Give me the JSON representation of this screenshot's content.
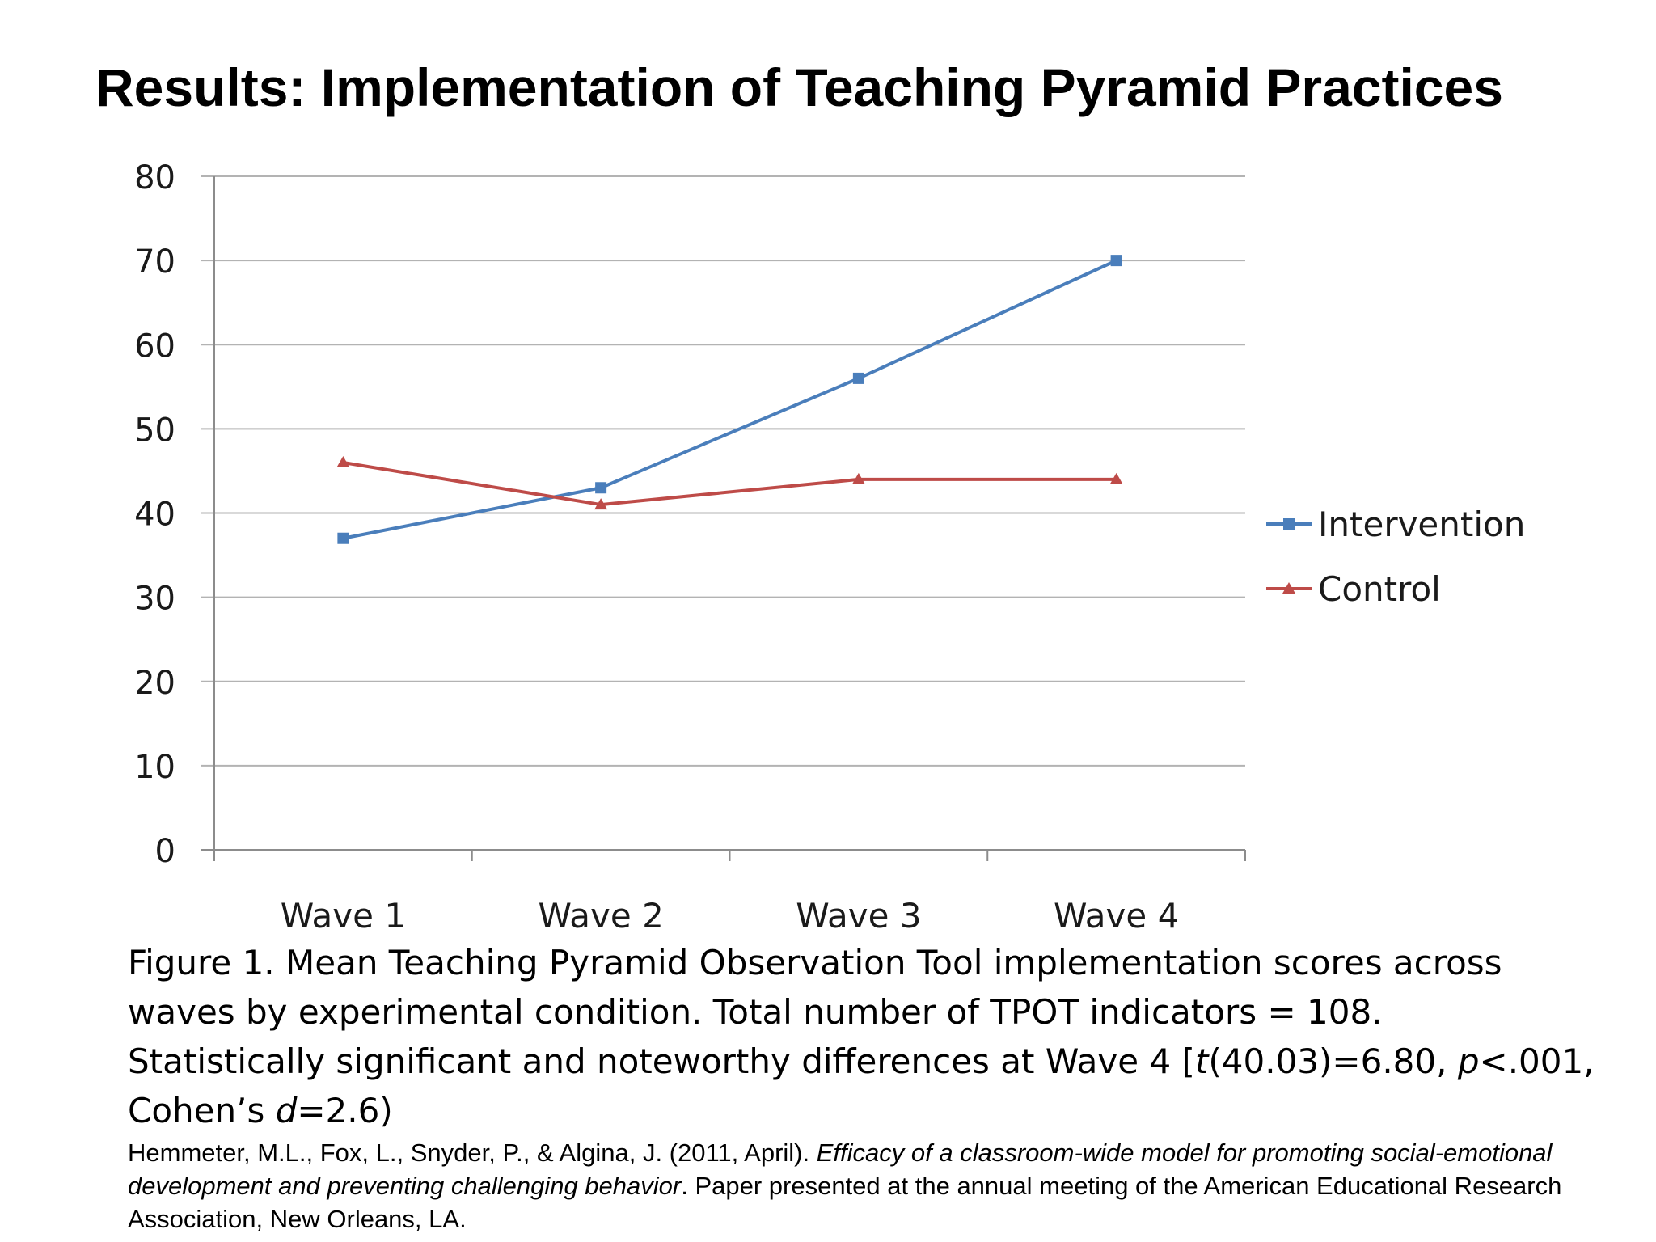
{
  "slide": {
    "title": "Results: Implementation of Teaching Pyramid Practices"
  },
  "chart_data": {
    "type": "line",
    "title": "",
    "xlabel": "",
    "ylabel": "",
    "categories": [
      "Wave 1",
      "Wave 2",
      "Wave 3",
      "Wave 4"
    ],
    "ylim": [
      0,
      80
    ],
    "yticks": [
      0,
      10,
      20,
      30,
      40,
      50,
      60,
      70,
      80
    ],
    "grid": true,
    "legend_position": "right",
    "series": [
      {
        "name": "Intervention",
        "values": [
          37,
          43,
          56,
          70
        ],
        "color": "#4a7ebb",
        "marker": "square"
      },
      {
        "name": "Control",
        "values": [
          46,
          41,
          44,
          44
        ],
        "color": "#be4b48",
        "marker": "triangle"
      }
    ]
  },
  "caption": {
    "line1": "Figure 1. Mean Teaching Pyramid Observation Tool implementation scores across",
    "line2": "waves by experimental condition. Total number of TPOT indicators = 108.",
    "line3_a": "Statistically significant and noteworthy differences at Wave 4 [",
    "line3_t": "t",
    "line3_b": "(40.03)=6.80, ",
    "line3_p": "p",
    "line3_c": "<.001,",
    "line4_a": "Cohen’s ",
    "line4_d": "d",
    "line4_b": "=2.6)"
  },
  "citation": {
    "authors": "Hemmeter, M.L., Fox, L., Snyder, P., & Algina, J. (2011, April). ",
    "title": "Efficacy of a classroom-wide model for promoting social-emotional development and preventing challenging behavior",
    "rest": ". Paper presented at the annual meeting of the American Educational Research Association, New Orleans, LA."
  }
}
